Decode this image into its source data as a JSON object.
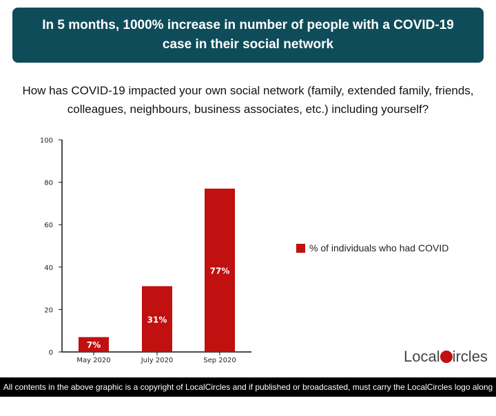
{
  "header": {
    "title": "In 5 months, 1000% increase in number of people with a COVID-19 case in their social network"
  },
  "question": "How has COVID-19 impacted your own social network (family, extended family, friends, colleagues, neighbours, business associates, etc.) including yourself?",
  "chart_data": {
    "type": "bar",
    "categories": [
      "May 2020",
      "July 2020",
      "Sep 2020"
    ],
    "series": [
      {
        "name": "% of individuals who had COVID",
        "values": [
          7,
          31,
          77
        ]
      }
    ],
    "data_labels": [
      "7%",
      "31%",
      "77%"
    ],
    "ylim": [
      0,
      100
    ],
    "yticks": [
      0,
      20,
      40,
      60,
      80,
      100
    ],
    "legend": "right",
    "grid": false,
    "color": "#c0100f"
  },
  "logo": {
    "text_left": "Local",
    "text_right": "ircles"
  },
  "footer": "All contents in the above graphic is a copyright of LocalCircles and if published or broadcasted, must carry the LocalCircles logo along with it."
}
